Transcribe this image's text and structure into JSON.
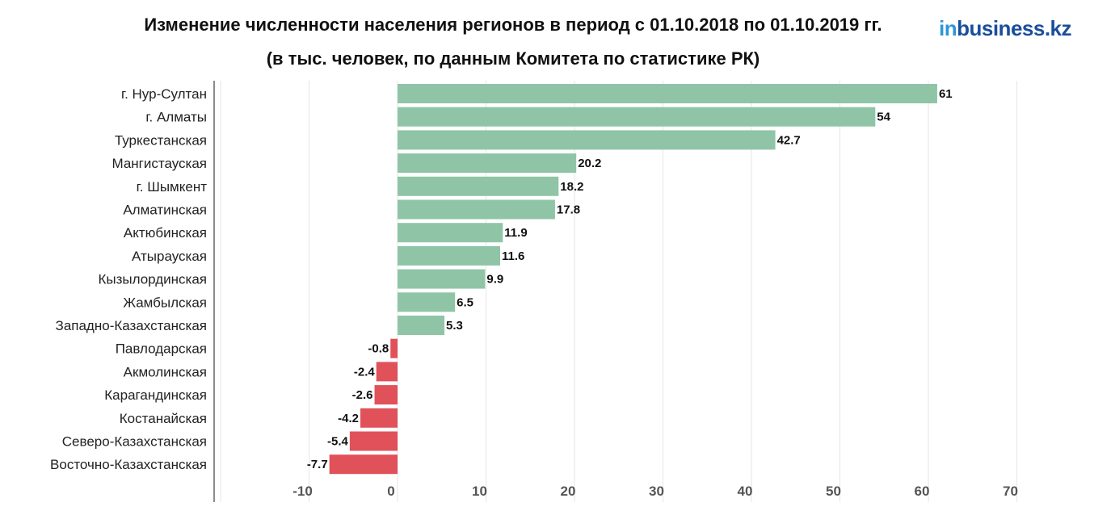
{
  "header": {
    "title": "Изменение численности населения регионов в период с 01.10.2018 по 01.10.2019 гг.",
    "subtitle": "(в тыс. человек, по данным Комитета по статистике РК)",
    "logo_in": "in",
    "logo_rest": "business.kz"
  },
  "chart_data": {
    "type": "bar",
    "orientation": "horizontal",
    "title": "Изменение численности населения регионов в период с 01.10.2018 по 01.10.2019 гг.",
    "subtitle": "(в тыс. человек, по данным Комитета по статистике РК)",
    "categories": [
      "г. Нур-Султан",
      "г. Алматы",
      "Туркестанская",
      "Мангистауская",
      "г. Шымкент",
      "Алматинская",
      "Актюбинская",
      "Атырауская",
      "Кызылординская",
      "Жамбылская",
      "Западно-Казахстанская",
      "Павлодарская",
      "Акмолинская",
      "Карагандинская",
      "Костанайская",
      "Северо-Казахстанская",
      "Восточно-Казахстанская"
    ],
    "values": [
      61,
      54,
      42.7,
      20.2,
      18.2,
      17.8,
      11.9,
      11.6,
      9.9,
      6.5,
      5.3,
      -0.8,
      -2.4,
      -2.6,
      -4.2,
      -5.4,
      -7.7
    ],
    "value_labels": [
      "61",
      "54",
      "42.7",
      "20.2",
      "18.2",
      "17.8",
      "11.9",
      "11.6",
      "9.9",
      "6.5",
      "5.3",
      "-0.8",
      "-2.4",
      "-2.6",
      "-4.2",
      "-5.4",
      "-7.7"
    ],
    "xlim": [
      -20,
      70
    ],
    "xticks": [
      -10,
      0,
      10,
      20,
      30,
      40,
      50,
      60,
      70
    ],
    "xtick_labels": [
      "-10",
      "0",
      "10",
      "20",
      "30",
      "40",
      "50",
      "60",
      "70"
    ],
    "colors": {
      "positive": "#8fc5a6",
      "negative": "#e0515a"
    },
    "grid": true
  }
}
